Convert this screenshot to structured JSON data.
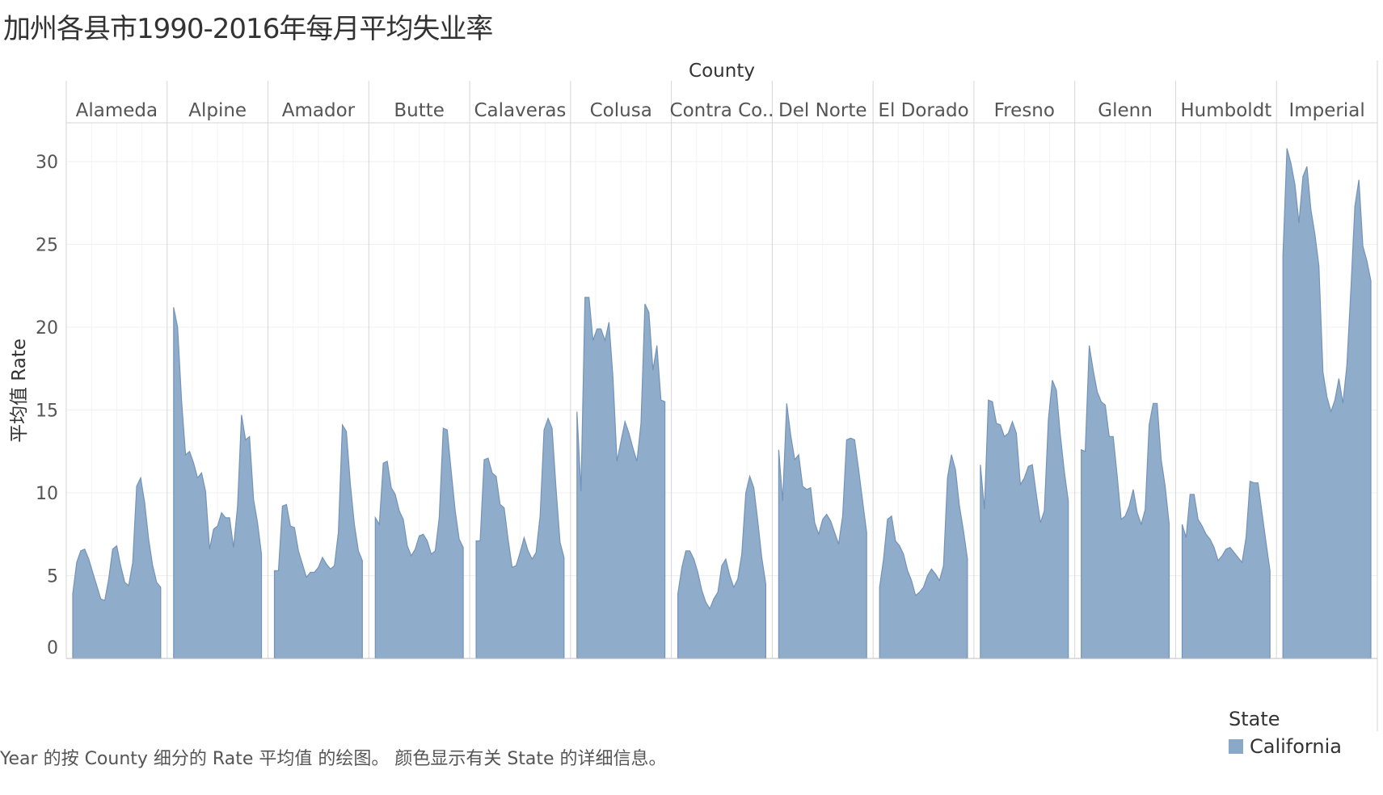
{
  "title": "加州各县市1990-2016年每月平均失业率",
  "caption": "Year 的按 County 细分的 Rate 平均值 的绘图。 颜色显示有关 State 的详细信息。",
  "legend": {
    "title": "State",
    "item": "California",
    "color": "#8AA8C8"
  },
  "chart_data": {
    "type": "area",
    "title": "加州各县市1990-2016年每月平均失业率",
    "column_header": "County",
    "ylabel": "平均值 Rate",
    "ylim": [
      0,
      32
    ],
    "yticks": [
      0,
      5,
      10,
      15,
      20,
      25,
      30
    ],
    "grid": true,
    "series_name": "California",
    "panels": [
      {
        "county": "Alameda",
        "values": [
          3.9,
          5.8,
          6.5,
          6.6,
          6.0,
          5.2,
          4.4,
          3.6,
          3.5,
          4.8,
          6.6,
          6.8,
          5.6,
          4.6,
          4.4,
          5.8,
          10.4,
          10.9,
          9.4,
          7.2,
          5.6,
          4.6,
          4.3
        ]
      },
      {
        "county": "Alpine",
        "values": [
          21.2,
          20.0,
          15.5,
          12.3,
          12.5,
          11.8,
          10.9,
          11.2,
          10.1,
          6.6,
          7.8,
          8.0,
          8.8,
          8.5,
          8.5,
          6.7,
          9.2,
          14.7,
          13.2,
          13.4,
          9.6,
          8.2,
          6.3
        ]
      },
      {
        "county": "Amador",
        "values": [
          5.3,
          5.3,
          9.2,
          9.3,
          8.0,
          7.9,
          6.5,
          5.7,
          4.9,
          5.2,
          5.2,
          5.5,
          6.1,
          5.7,
          5.4,
          5.6,
          7.6,
          14.1,
          13.7,
          10.5,
          8.1,
          6.5,
          5.9
        ]
      },
      {
        "county": "Butte",
        "values": [
          8.5,
          8.1,
          11.8,
          11.9,
          10.3,
          9.9,
          8.9,
          8.4,
          6.8,
          6.2,
          6.6,
          7.4,
          7.5,
          7.1,
          6.3,
          6.5,
          8.5,
          13.9,
          13.8,
          11.3,
          8.9,
          7.2,
          6.7
        ]
      },
      {
        "county": "Calaveras",
        "values": [
          7.1,
          7.1,
          12.0,
          12.1,
          11.2,
          11.0,
          9.3,
          9.1,
          7.2,
          5.5,
          5.6,
          6.4,
          7.3,
          6.5,
          6.0,
          6.4,
          8.6,
          13.8,
          14.5,
          13.9,
          10.2,
          7.0,
          6.1
        ]
      },
      {
        "county": "Colusa",
        "values": [
          14.9,
          10.1,
          21.8,
          21.8,
          19.2,
          19.9,
          19.9,
          19.2,
          20.3,
          17.0,
          11.9,
          13.1,
          14.3,
          13.6,
          12.7,
          11.9,
          14.2,
          21.4,
          20.9,
          17.4,
          18.9,
          15.6,
          15.5
        ]
      },
      {
        "county": "Contra Co..",
        "values": [
          3.9,
          5.5,
          6.5,
          6.5,
          6.0,
          5.2,
          4.1,
          3.4,
          3.0,
          3.6,
          4.0,
          5.6,
          6.0,
          5.0,
          4.3,
          4.8,
          6.3,
          10.0,
          11.0,
          10.3,
          8.3,
          6.1,
          4.5
        ]
      },
      {
        "county": "Del Norte",
        "values": [
          12.6,
          9.5,
          15.4,
          13.5,
          12.0,
          12.3,
          10.4,
          10.2,
          10.3,
          8.2,
          7.5,
          8.4,
          8.7,
          8.3,
          7.6,
          6.9,
          8.6,
          13.2,
          13.3,
          13.2,
          11.4,
          9.5,
          7.6
        ]
      },
      {
        "county": "El Dorado",
        "values": [
          4.3,
          6.0,
          8.4,
          8.6,
          7.1,
          6.8,
          6.3,
          5.3,
          4.7,
          3.8,
          4.0,
          4.3,
          5.0,
          5.4,
          5.1,
          4.7,
          5.6,
          10.9,
          12.3,
          11.4,
          9.2,
          7.7,
          6.0
        ]
      },
      {
        "county": "Fresno",
        "values": [
          11.7,
          9.0,
          15.6,
          15.5,
          14.2,
          14.1,
          13.4,
          13.6,
          14.3,
          13.6,
          10.5,
          10.9,
          11.6,
          11.7,
          9.9,
          8.2,
          8.9,
          14.4,
          16.8,
          16.2,
          13.5,
          11.3,
          9.5
        ]
      },
      {
        "county": "Glenn",
        "values": [
          12.6,
          12.5,
          18.9,
          17.4,
          16.1,
          15.5,
          15.3,
          13.4,
          13.4,
          11.0,
          8.4,
          8.6,
          9.2,
          10.2,
          8.8,
          8.1,
          9.0,
          14.1,
          15.4,
          15.4,
          12.0,
          10.4,
          8.1
        ]
      },
      {
        "county": "Humboldt",
        "values": [
          8.1,
          7.3,
          9.9,
          9.9,
          8.4,
          8.0,
          7.5,
          7.2,
          6.7,
          5.9,
          6.2,
          6.6,
          6.7,
          6.4,
          6.1,
          5.8,
          7.3,
          10.7,
          10.6,
          10.6,
          8.8,
          7.0,
          5.3
        ]
      },
      {
        "county": "Imperial",
        "values": [
          24.3,
          30.8,
          29.9,
          28.6,
          26.3,
          29.1,
          29.7,
          27.1,
          25.6,
          23.7,
          17.3,
          15.8,
          14.9,
          15.6,
          16.9,
          15.4,
          17.7,
          22.3,
          27.3,
          28.9,
          24.9,
          24.0,
          22.8
        ]
      }
    ]
  }
}
